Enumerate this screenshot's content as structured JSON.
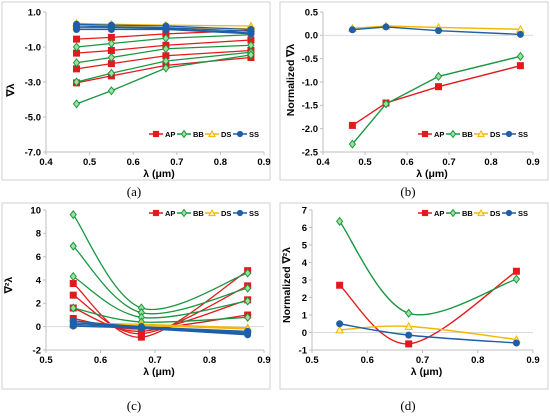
{
  "chart_data": [
    {
      "id": "a",
      "type": "line",
      "caption": "(a)",
      "xlabel": "λ (μm)",
      "ylabel": "∇λ",
      "xlim": [
        0.4,
        0.9
      ],
      "ylim": [
        -7.0,
        1.0
      ],
      "xticks": [
        "0.4",
        "0.5",
        "0.6",
        "0.7",
        "0.8",
        "0.9"
      ],
      "yticks": [
        "1.0",
        "-1.0",
        "-3.0",
        "-5.0",
        "-7.0"
      ],
      "xtick_values": [
        0.4,
        0.5,
        0.6,
        0.7,
        0.8,
        0.9
      ],
      "ytick_values": [
        1.0,
        -1.0,
        -3.0,
        -5.0,
        -7.0
      ],
      "legend": [
        "AP",
        "BB",
        "DS",
        "SS"
      ],
      "legend_position": "bottom-right",
      "series": [
        {
          "name": "AP",
          "color": "#e31a1c",
          "marker": "square",
          "x": [
            0.47,
            0.55,
            0.675,
            0.87
          ],
          "y": [
            -0.55,
            -0.45,
            -0.25,
            -0.05
          ]
        },
        {
          "name": "AP",
          "color": "#e31a1c",
          "marker": "square",
          "x": [
            0.47,
            0.55,
            0.675,
            0.87
          ],
          "y": [
            -1.35,
            -1.2,
            -0.9,
            -0.6
          ]
        },
        {
          "name": "AP",
          "color": "#e31a1c",
          "marker": "square",
          "x": [
            0.47,
            0.55,
            0.675,
            0.87
          ],
          "y": [
            -2.25,
            -1.95,
            -1.5,
            -1.2
          ]
        },
        {
          "name": "AP",
          "color": "#e31a1c",
          "marker": "square",
          "x": [
            0.47,
            0.55,
            0.675,
            0.87
          ],
          "y": [
            -3.05,
            -2.65,
            -2.05,
            -1.6
          ]
        },
        {
          "name": "BB",
          "color": "#1a9641",
          "marker": "diamond",
          "x": [
            0.47,
            0.55,
            0.675,
            0.87
          ],
          "y": [
            -1.0,
            -0.8,
            -0.5,
            -0.3
          ]
        },
        {
          "name": "BB",
          "color": "#1a9641",
          "marker": "diamond",
          "x": [
            0.47,
            0.55,
            0.675,
            0.87
          ],
          "y": [
            -1.9,
            -1.6,
            -1.1,
            -0.9
          ]
        },
        {
          "name": "BB",
          "color": "#1a9641",
          "marker": "diamond",
          "x": [
            0.47,
            0.55,
            0.675,
            0.87
          ],
          "y": [
            -3.0,
            -2.5,
            -1.8,
            -1.3
          ]
        },
        {
          "name": "BB",
          "color": "#1a9641",
          "marker": "diamond",
          "x": [
            0.47,
            0.55,
            0.675,
            0.87
          ],
          "y": [
            -4.25,
            -3.5,
            -2.2,
            -1.45
          ]
        },
        {
          "name": "DS",
          "color": "#f2b705",
          "marker": "triangle",
          "x": [
            0.47,
            0.55,
            0.675,
            0.87
          ],
          "y": [
            0.35,
            0.3,
            0.25,
            0.2
          ]
        },
        {
          "name": "DS",
          "color": "#f2b705",
          "marker": "triangle",
          "x": [
            0.47,
            0.55,
            0.675,
            0.87
          ],
          "y": [
            0.2,
            0.2,
            0.1,
            0.05
          ]
        },
        {
          "name": "SS",
          "color": "#1f5fa8",
          "marker": "circle",
          "x": [
            0.47,
            0.55,
            0.675,
            0.87
          ],
          "y": [
            0.3,
            0.25,
            0.2,
            0.0
          ]
        },
        {
          "name": "SS",
          "color": "#1f5fa8",
          "marker": "circle",
          "x": [
            0.47,
            0.55,
            0.675,
            0.87
          ],
          "y": [
            0.2,
            0.15,
            0.1,
            -0.1
          ]
        },
        {
          "name": "SS",
          "color": "#1f5fa8",
          "marker": "circle",
          "x": [
            0.47,
            0.55,
            0.675,
            0.87
          ],
          "y": [
            0.1,
            0.1,
            0.05,
            -0.2
          ]
        },
        {
          "name": "SS",
          "color": "#1f5fa8",
          "marker": "circle",
          "x": [
            0.47,
            0.55,
            0.675,
            0.87
          ],
          "y": [
            0.0,
            0.0,
            0.0,
            -0.25
          ]
        }
      ]
    },
    {
      "id": "b",
      "type": "line",
      "caption": "(b)",
      "xlabel": "λ (μm)",
      "ylabel": "Normalized ∇λ",
      "xlim": [
        0.4,
        0.9
      ],
      "ylim": [
        -2.5,
        0.5
      ],
      "xticks": [
        "0.4",
        "0.5",
        "0.6",
        "0.7",
        "0.8",
        "0.9"
      ],
      "yticks": [
        "0.5",
        "0.0",
        "-0.5",
        "-1.0",
        "-1.5",
        "-2.0",
        "-2.5"
      ],
      "xtick_values": [
        0.4,
        0.5,
        0.6,
        0.7,
        0.8,
        0.9
      ],
      "ytick_values": [
        0.5,
        0.0,
        -0.5,
        -1.0,
        -1.5,
        -2.0,
        -2.5
      ],
      "legend": [
        "AP",
        "BB",
        "DS",
        "SS"
      ],
      "legend_position": "bottom-right",
      "series": [
        {
          "name": "AP",
          "color": "#e31a1c",
          "marker": "square",
          "x": [
            0.47,
            0.55,
            0.675,
            0.87
          ],
          "y": [
            -1.93,
            -1.45,
            -1.1,
            -0.65
          ]
        },
        {
          "name": "BB",
          "color": "#1a9641",
          "marker": "diamond",
          "x": [
            0.47,
            0.55,
            0.675,
            0.87
          ],
          "y": [
            -2.33,
            -1.47,
            -0.88,
            -0.45
          ]
        },
        {
          "name": "DS",
          "color": "#f2b705",
          "marker": "triangle",
          "x": [
            0.47,
            0.55,
            0.675,
            0.87
          ],
          "y": [
            0.15,
            0.2,
            0.17,
            0.13
          ]
        },
        {
          "name": "SS",
          "color": "#1f5fa8",
          "marker": "circle",
          "x": [
            0.47,
            0.55,
            0.675,
            0.87
          ],
          "y": [
            0.12,
            0.18,
            0.1,
            0.02
          ]
        }
      ]
    },
    {
      "id": "c",
      "type": "line",
      "caption": "(c)",
      "xlabel": "λ (μm)",
      "ylabel": "∇²λ",
      "xlim": [
        0.5,
        0.9
      ],
      "ylim": [
        -2,
        10
      ],
      "xticks": [
        "0.5",
        "0.6",
        "0.7",
        "0.8",
        "0.9"
      ],
      "yticks": [
        "10",
        "8",
        "6",
        "4",
        "2",
        "0",
        "-2"
      ],
      "xtick_values": [
        0.5,
        0.6,
        0.7,
        0.8,
        0.9
      ],
      "ytick_values": [
        10,
        8,
        6,
        4,
        2,
        0,
        -2
      ],
      "legend": [
        "AP",
        "BB",
        "DS",
        "SS"
      ],
      "legend_position": "top-right",
      "series": [
        {
          "name": "AP",
          "color": "#e31a1c",
          "marker": "square",
          "x": [
            0.55,
            0.675,
            0.87
          ],
          "y": [
            3.7,
            -0.9,
            4.8
          ]
        },
        {
          "name": "AP",
          "color": "#e31a1c",
          "marker": "square",
          "x": [
            0.55,
            0.675,
            0.87
          ],
          "y": [
            2.7,
            -0.6,
            3.5
          ]
        },
        {
          "name": "AP",
          "color": "#e31a1c",
          "marker": "square",
          "x": [
            0.55,
            0.675,
            0.87
          ],
          "y": [
            1.6,
            -0.4,
            2.3
          ]
        },
        {
          "name": "AP",
          "color": "#e31a1c",
          "marker": "square",
          "x": [
            0.55,
            0.675,
            0.87
          ],
          "y": [
            0.7,
            -0.2,
            1.0
          ]
        },
        {
          "name": "BB",
          "color": "#1a9641",
          "marker": "diamond",
          "x": [
            0.55,
            0.675,
            0.87
          ],
          "y": [
            9.6,
            1.6,
            4.6
          ]
        },
        {
          "name": "BB",
          "color": "#1a9641",
          "marker": "diamond",
          "x": [
            0.55,
            0.675,
            0.87
          ],
          "y": [
            6.9,
            1.2,
            3.3
          ]
        },
        {
          "name": "BB",
          "color": "#1a9641",
          "marker": "diamond",
          "x": [
            0.55,
            0.675,
            0.87
          ],
          "y": [
            4.3,
            0.8,
            2.2
          ]
        },
        {
          "name": "BB",
          "color": "#1a9641",
          "marker": "diamond",
          "x": [
            0.55,
            0.675,
            0.87
          ],
          "y": [
            1.6,
            0.4,
            0.8
          ]
        },
        {
          "name": "DS",
          "color": "#f2b705",
          "marker": "triangle",
          "x": [
            0.55,
            0.675,
            0.87
          ],
          "y": [
            0.3,
            0.2,
            -0.1
          ]
        },
        {
          "name": "DS",
          "color": "#f2b705",
          "marker": "triangle",
          "x": [
            0.55,
            0.675,
            0.87
          ],
          "y": [
            0.15,
            0.1,
            -0.2
          ]
        },
        {
          "name": "SS",
          "color": "#1f5fa8",
          "marker": "circle",
          "x": [
            0.55,
            0.675,
            0.87
          ],
          "y": [
            0.5,
            0.0,
            -0.4
          ]
        },
        {
          "name": "SS",
          "color": "#1f5fa8",
          "marker": "circle",
          "x": [
            0.55,
            0.675,
            0.87
          ],
          "y": [
            0.35,
            -0.05,
            -0.5
          ]
        },
        {
          "name": "SS",
          "color": "#1f5fa8",
          "marker": "circle",
          "x": [
            0.55,
            0.675,
            0.87
          ],
          "y": [
            0.2,
            -0.1,
            -0.6
          ]
        },
        {
          "name": "SS",
          "color": "#1f5fa8",
          "marker": "circle",
          "x": [
            0.55,
            0.675,
            0.87
          ],
          "y": [
            0.05,
            -0.15,
            -0.7
          ]
        }
      ]
    },
    {
      "id": "d",
      "type": "line",
      "caption": "(d)",
      "xlabel": "λ (μm)",
      "ylabel": "Normalized ∇²λ",
      "xlim": [
        0.5,
        0.9
      ],
      "ylim": [
        -1,
        7
      ],
      "xticks": [
        "0.5",
        "0.6",
        "0.7",
        "0.8",
        "0.9"
      ],
      "yticks": [
        "7",
        "6",
        "5",
        "4",
        "3",
        "2",
        "1",
        "0",
        "-1"
      ],
      "xtick_values": [
        0.5,
        0.6,
        0.7,
        0.8,
        0.9
      ],
      "ytick_values": [
        7,
        6,
        5,
        4,
        3,
        2,
        1,
        0,
        -1
      ],
      "legend": [
        "AP",
        "BB",
        "DS",
        "SS"
      ],
      "legend_position": "top-right",
      "series": [
        {
          "name": "AP",
          "color": "#e31a1c",
          "marker": "square",
          "x": [
            0.55,
            0.675,
            0.87
          ],
          "y": [
            2.7,
            -0.65,
            3.5
          ]
        },
        {
          "name": "BB",
          "color": "#1a9641",
          "marker": "diamond",
          "x": [
            0.55,
            0.675,
            0.87
          ],
          "y": [
            6.35,
            1.1,
            3.05
          ]
        },
        {
          "name": "DS",
          "color": "#f2b705",
          "marker": "triangle",
          "x": [
            0.55,
            0.675,
            0.87
          ],
          "y": [
            0.15,
            0.35,
            -0.4
          ]
        },
        {
          "name": "SS",
          "color": "#1f5fa8",
          "marker": "circle",
          "x": [
            0.55,
            0.675,
            0.87
          ],
          "y": [
            0.5,
            -0.15,
            -0.6
          ]
        }
      ]
    }
  ]
}
